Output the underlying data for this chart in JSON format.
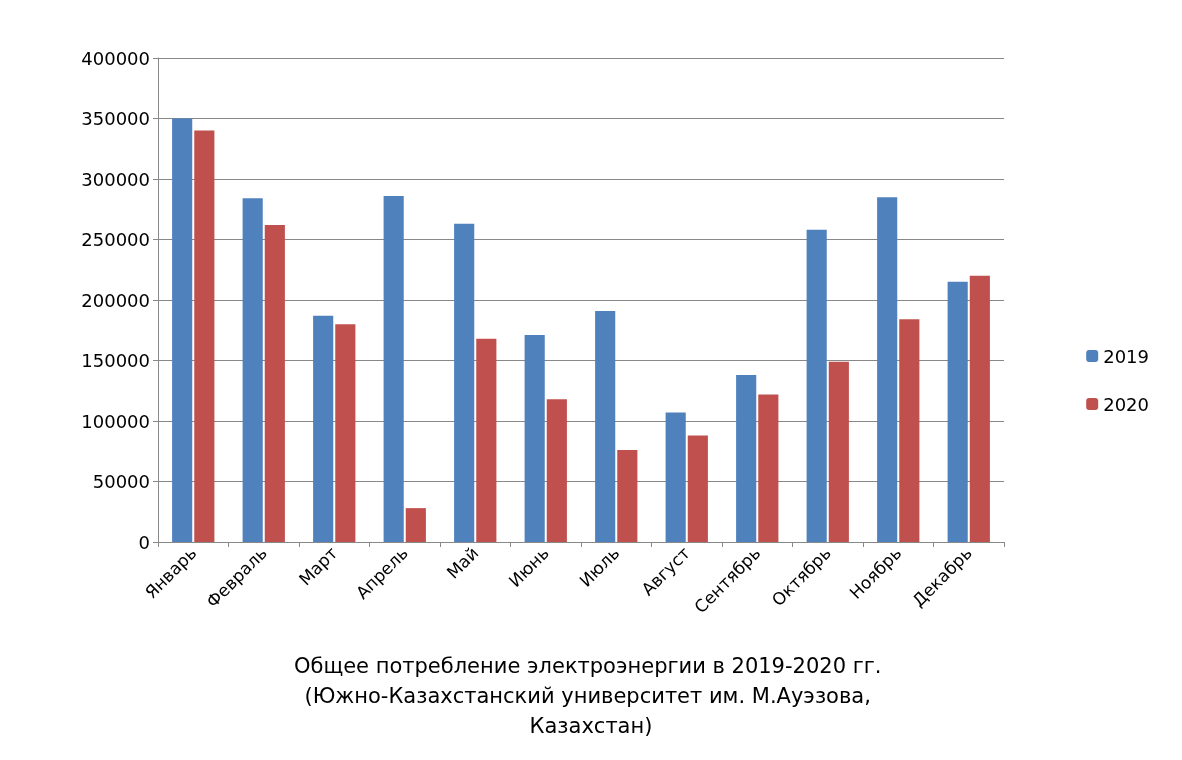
{
  "chart_data": {
    "type": "bar",
    "title": "Общее потребление электроэнергии в 2019-2020 гг. (Южно-Казахстанский университет им. М.Ауэзова, Казахстан)",
    "categories": [
      "Январь",
      "Февраль",
      "Март",
      "Апрель",
      "Май",
      "Июнь",
      "Июль",
      "Август",
      "Сентябрь",
      "Октябрь",
      "Ноябрь",
      "Декабрь"
    ],
    "series": [
      {
        "name": "2019",
        "color": "#4f81bd",
        "values": [
          350000,
          284000,
          187000,
          286000,
          263000,
          171000,
          191000,
          107000,
          138000,
          258000,
          285000,
          215000
        ]
      },
      {
        "name": "2020",
        "color": "#c0504d",
        "values": [
          340000,
          262000,
          180000,
          28000,
          168000,
          118000,
          76000,
          88000,
          122000,
          149000,
          184000,
          220000
        ]
      }
    ],
    "ylim": [
      0,
      400000
    ],
    "yticks": [
      0,
      50000,
      100000,
      150000,
      200000,
      250000,
      300000,
      350000,
      400000
    ],
    "grid": "y",
    "legend": "right"
  }
}
